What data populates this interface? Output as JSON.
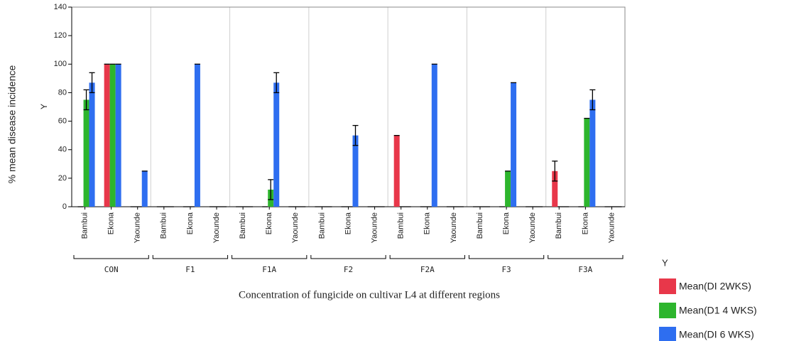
{
  "chart_data": {
    "type": "bar",
    "y_label": "% mean disease incidence",
    "y_axis_name": "Y",
    "x_label": "Concentration of fungicide on cultivar L4 at different regions",
    "legend_title": "Y",
    "groups": [
      "CON",
      "F1",
      "F1A",
      "F2",
      "F2A",
      "F3",
      "F3A"
    ],
    "categories": [
      "Bambui",
      "Ekona",
      "Yaounde",
      "Bambui",
      "Ekona",
      "Yaounde",
      "Bambui",
      "Ekona",
      "Yaounde",
      "Bambui",
      "Ekona",
      "Yaounde",
      "Bambui",
      "Ekona",
      "Yaounde",
      "Bambui",
      "Ekona",
      "Yaounde",
      "Bambui",
      "Ekona",
      "Yaounde"
    ],
    "series": [
      {
        "name": "Mean(DI 2WKS)",
        "color": "#e8374a",
        "values": [
          0,
          100,
          0,
          0,
          0,
          0,
          0,
          0,
          0,
          0,
          0,
          0,
          50,
          0,
          0,
          0,
          0,
          0,
          25,
          0,
          0
        ],
        "errors": [
          0,
          0,
          0,
          0,
          0,
          0,
          0,
          0,
          0,
          0,
          0,
          0,
          0,
          0,
          0,
          0,
          0,
          0,
          7,
          0,
          0
        ]
      },
      {
        "name": "Mean(D1 4 WKS)",
        "color": "#2db52d",
        "values": [
          75,
          100,
          0,
          0,
          0,
          0,
          0,
          12,
          0,
          0,
          0,
          0,
          0,
          0,
          0,
          0,
          25,
          0,
          0,
          62,
          0
        ],
        "errors": [
          7,
          0,
          0,
          0,
          0,
          0,
          0,
          7,
          0,
          0,
          0,
          0,
          0,
          0,
          0,
          0,
          0,
          0,
          0,
          0,
          0
        ]
      },
      {
        "name": "Mean(DI 6 WKS)",
        "color": "#2e6ef0",
        "values": [
          87,
          100,
          25,
          0,
          100,
          0,
          0,
          87,
          0,
          0,
          50,
          0,
          0,
          100,
          0,
          0,
          87,
          0,
          0,
          75,
          0
        ],
        "errors": [
          7,
          0,
          0,
          0,
          0,
          0,
          0,
          7,
          0,
          0,
          7,
          0,
          0,
          0,
          0,
          0,
          0,
          0,
          0,
          7,
          0
        ]
      }
    ],
    "ylim": [
      0,
      140
    ],
    "yticks": [
      0,
      20,
      40,
      60,
      80,
      100,
      120,
      140
    ]
  }
}
